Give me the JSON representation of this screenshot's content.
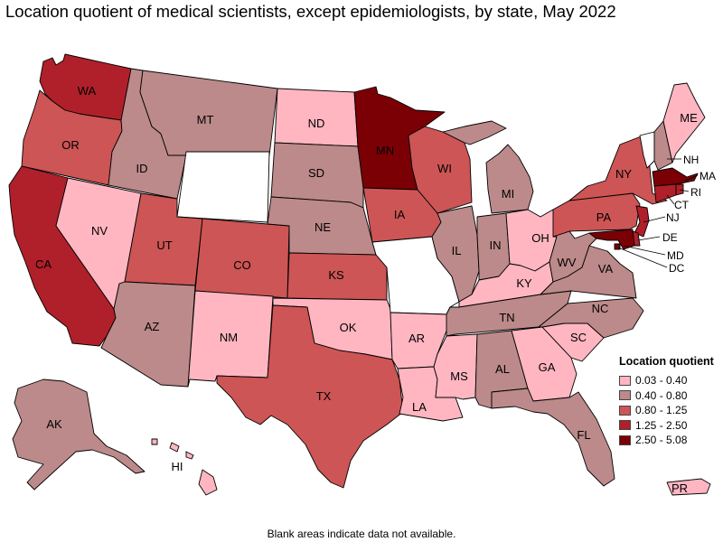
{
  "title": "Location quotient of medical scientists, except epidemiologists, by state, May 2022",
  "footnote": "Blank areas indicate data not available.",
  "legend": {
    "title": "Location quotient",
    "bins": [
      {
        "label": "0.03 - 0.40",
        "color": "#ffb6c1"
      },
      {
        "label": "0.40 - 0.80",
        "color": "#bc8a8a"
      },
      {
        "label": "0.80 - 1.25",
        "color": "#cd5555"
      },
      {
        "label": "1.25 - 2.50",
        "color": "#b0202a"
      },
      {
        "label": "2.50 - 5.08",
        "color": "#7a0006"
      }
    ]
  },
  "no_data_color": "#ffffff",
  "states": [
    {
      "abbr": "WA",
      "bin": 3
    },
    {
      "abbr": "OR",
      "bin": 2
    },
    {
      "abbr": "CA",
      "bin": 3
    },
    {
      "abbr": "ID",
      "bin": 1
    },
    {
      "abbr": "NV",
      "bin": 0
    },
    {
      "abbr": "MT",
      "bin": 1
    },
    {
      "abbr": "WY",
      "bin": null
    },
    {
      "abbr": "UT",
      "bin": 2
    },
    {
      "abbr": "AZ",
      "bin": 1
    },
    {
      "abbr": "CO",
      "bin": 2
    },
    {
      "abbr": "NM",
      "bin": 0
    },
    {
      "abbr": "ND",
      "bin": 0
    },
    {
      "abbr": "SD",
      "bin": 1
    },
    {
      "abbr": "NE",
      "bin": 1
    },
    {
      "abbr": "KS",
      "bin": 2
    },
    {
      "abbr": "OK",
      "bin": 0
    },
    {
      "abbr": "TX",
      "bin": 2
    },
    {
      "abbr": "MN",
      "bin": 4
    },
    {
      "abbr": "IA",
      "bin": 2
    },
    {
      "abbr": "MO",
      "bin": null
    },
    {
      "abbr": "AR",
      "bin": 0
    },
    {
      "abbr": "LA",
      "bin": 0
    },
    {
      "abbr": "WI",
      "bin": 2
    },
    {
      "abbr": "IL",
      "bin": 1
    },
    {
      "abbr": "MI",
      "bin": 1
    },
    {
      "abbr": "IN",
      "bin": 1
    },
    {
      "abbr": "OH",
      "bin": 0
    },
    {
      "abbr": "KY",
      "bin": 0
    },
    {
      "abbr": "TN",
      "bin": 1
    },
    {
      "abbr": "MS",
      "bin": 0
    },
    {
      "abbr": "AL",
      "bin": 1
    },
    {
      "abbr": "GA",
      "bin": 0
    },
    {
      "abbr": "FL",
      "bin": 1
    },
    {
      "abbr": "SC",
      "bin": 0
    },
    {
      "abbr": "NC",
      "bin": 1
    },
    {
      "abbr": "VA",
      "bin": 1
    },
    {
      "abbr": "WV",
      "bin": 1
    },
    {
      "abbr": "PA",
      "bin": 2
    },
    {
      "abbr": "NY",
      "bin": 2
    },
    {
      "abbr": "VT",
      "bin": null
    },
    {
      "abbr": "NH",
      "bin": 1
    },
    {
      "abbr": "ME",
      "bin": 0
    },
    {
      "abbr": "MA",
      "bin": 4
    },
    {
      "abbr": "RI",
      "bin": 3
    },
    {
      "abbr": "CT",
      "bin": 3
    },
    {
      "abbr": "NJ",
      "bin": 3
    },
    {
      "abbr": "DE",
      "bin": 3
    },
    {
      "abbr": "MD",
      "bin": 4
    },
    {
      "abbr": "DC",
      "bin": 4
    },
    {
      "abbr": "AK",
      "bin": 1
    },
    {
      "abbr": "HI",
      "bin": 0
    },
    {
      "abbr": "PR",
      "bin": 0
    }
  ]
}
